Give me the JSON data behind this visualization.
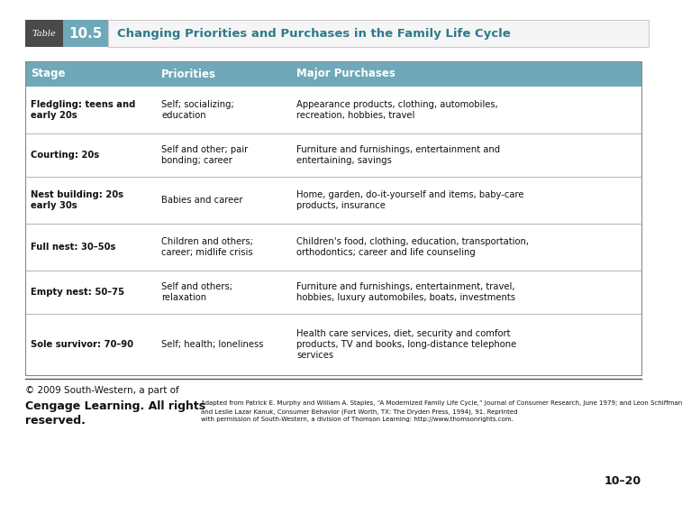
{
  "title": "Changing Priorities and Purchases in the Family Life Cycle",
  "table_label": "10.5",
  "table_tag": "Table",
  "header": [
    "Stage",
    "Priorities",
    "Major Purchases"
  ],
  "rows": [
    {
      "stage": "Fledgling: teens and\nearly 20s",
      "priorities": "Self; socializing;\neducation",
      "purchases": "Appearance products, clothing, automobiles,\nrecreation, hobbies, travel"
    },
    {
      "stage": "Courting: 20s",
      "priorities": "Self and other; pair\nbonding; career",
      "purchases": "Furniture and furnishings, entertainment and\nentertaining, savings"
    },
    {
      "stage": "Nest building: 20s\nearly 30s",
      "priorities": "Babies and career",
      "purchases": "Home, garden, do-it-yourself and items, baby-care\nproducts, insurance"
    },
    {
      "stage": "Full nest: 30–50s",
      "priorities": "Children and others;\ncareer; midlife crisis",
      "purchases": "Children's food, clothing, education, transportation,\northodontics; career and life counseling"
    },
    {
      "stage": "Empty nest: 50–75",
      "priorities": "Self and others;\nrelaxation",
      "purchases": "Furniture and furnishings, entertainment, travel,\nhobbies, luxury automobiles, boats, investments"
    },
    {
      "stage": "Sole survivor: 70–90",
      "priorities": "Self; health; loneliness",
      "purchases": "Health care services, diet, security and comfort\nproducts, TV and books, long-distance telephone\nservices"
    }
  ],
  "footer_line1": "© 2009 South-Western, a part of",
  "footer_bold1": "Cengage Learning. All rights",
  "footer_bold2": "reserved.",
  "footer_small1": "Adapted from Patrick E. Murphy and William A. Staples, “A Modernized Family Life Cycle,” Journal of Consumer Research, June 1979; and Leon Schiffman",
  "footer_small2": "and Leslie Lazar Kanuk, Consumer Behavior (Fort Worth, TX: The Dryden Press, 1994), 91. Reprinted",
  "footer_small3": "with permission of South-Western, a division of Thomson Learning: http://www.thomsonrights.com.",
  "page_num": "10–20",
  "header_bg": "#6fa8b8",
  "header_text": "#ffffff",
  "title_text": "#2e7a8a",
  "table_tag_bg": "#4a4a4a",
  "table_num_bg": "#6fa8b8",
  "divider_color": "#aaaaaa",
  "outer_border_color": "#888888"
}
